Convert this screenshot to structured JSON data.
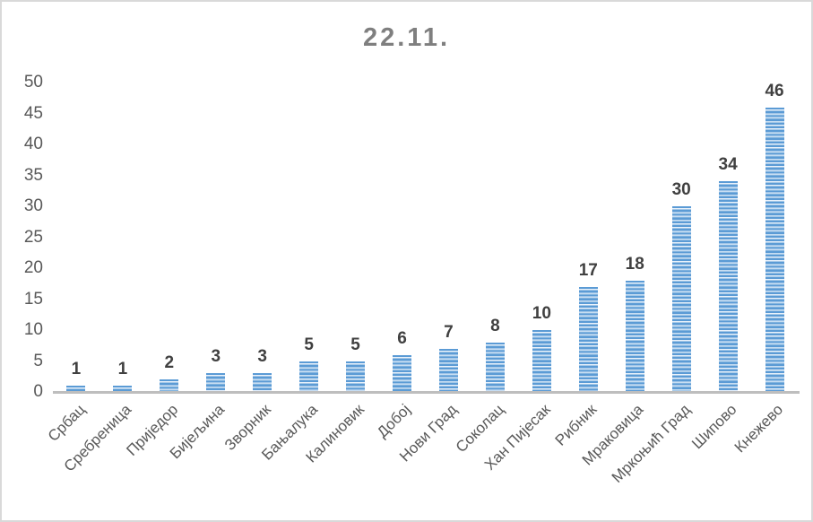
{
  "chart_data": {
    "type": "bar",
    "title": "22.11.",
    "categories": [
      "Србац",
      "Сребреница",
      "Приједор",
      "Бијељина",
      "Зворник",
      "Бањалука",
      "Калиновик",
      "Добој",
      "Нови Град",
      "Соколац",
      "Хан Пијесак",
      "Рибник",
      "Мраковица",
      "Мркоњић Град",
      "Шипово",
      "Кнежево"
    ],
    "values": [
      1,
      1,
      2,
      3,
      3,
      5,
      5,
      6,
      7,
      8,
      10,
      17,
      18,
      30,
      34,
      46
    ],
    "xlabel": "",
    "ylabel": "",
    "ylim": [
      0,
      50
    ],
    "ytick_step": 5,
    "ytick_labels": [
      "0",
      "5",
      "10",
      "15",
      "20",
      "25",
      "30",
      "35",
      "40",
      "45",
      "50"
    ],
    "grid": false,
    "legend_position": "none",
    "data_labels": true,
    "bar_orientation": "vertical",
    "x_label_rotation_deg": 45,
    "colors": {
      "bar_primary": "#5B9BD5",
      "bar_stripe_light": "#EAF2FB",
      "bar_stripe_mid": "#A6C9E8",
      "title_text": "#7F7F7F",
      "axis_text": "#595959",
      "value_label_text": "#404040",
      "axis_line": "#BEBEBE",
      "frame_border": "#D9D9D9",
      "background": "#FFFFFF"
    }
  }
}
